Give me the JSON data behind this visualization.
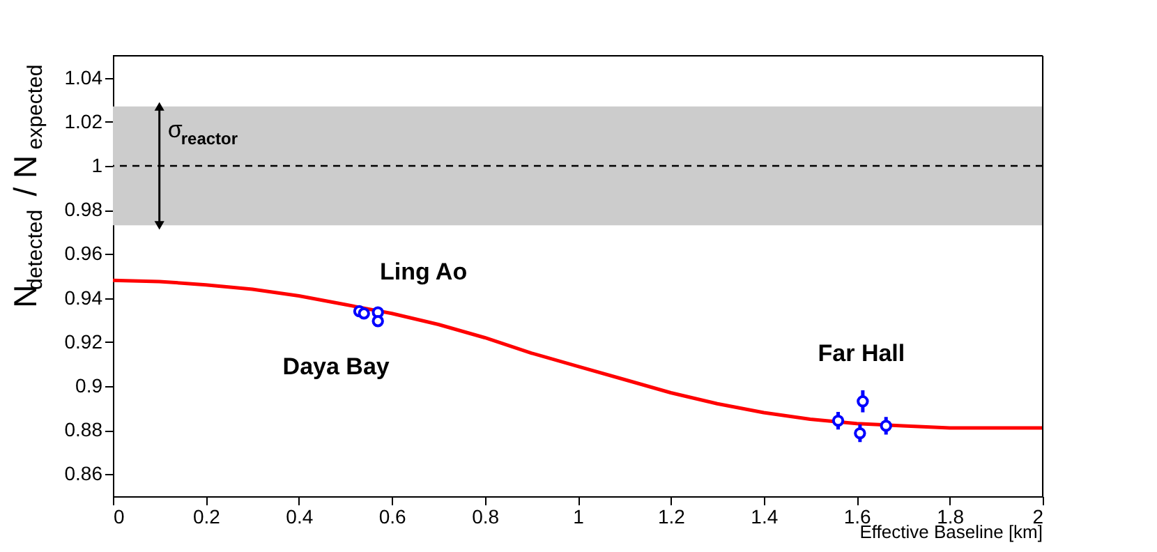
{
  "chart_data": {
    "type": "scatter",
    "xlabel": "Effective Baseline [km]",
    "ylabel": "N$_{detected}$ / N$_{expected}$",
    "xlim": [
      0,
      2
    ],
    "xticks": [
      0,
      0.2,
      0.4,
      0.6,
      0.8,
      1,
      1.2,
      1.4,
      1.6,
      1.8,
      2
    ],
    "ylim": [
      0.85,
      1.05
    ],
    "yticks": [
      0.86,
      0.88,
      0.9,
      0.92,
      0.94,
      0.96,
      0.98,
      1,
      1.02,
      1.04
    ],
    "grid": false,
    "series": [
      {
        "type": "line",
        "color": "#ff0000",
        "line_style": "solid",
        "x": [
          0,
          0.1,
          0.2,
          0.3,
          0.4,
          0.5,
          0.6,
          0.7,
          0.8,
          0.9,
          1.0,
          1.1,
          1.2,
          1.3,
          1.4,
          1.5,
          1.6,
          1.7,
          1.8,
          1.9,
          2.0
        ],
        "values": [
          0.948,
          0.9475,
          0.946,
          0.944,
          0.941,
          0.937,
          0.933,
          0.928,
          0.922,
          0.915,
          0.909,
          0.903,
          0.897,
          0.892,
          0.888,
          0.885,
          0.883,
          0.882,
          0.881,
          0.881,
          0.881
        ]
      },
      {
        "color": "#0000ff",
        "marker": "circle",
        "x": [
          0.53,
          0.54,
          0.57,
          0.57,
          1.56,
          1.607,
          1.613,
          1.663
        ],
        "values": [
          0.934,
          0.933,
          0.9335,
          0.9295,
          0.8843,
          0.8786,
          0.8931,
          0.882
        ],
        "errors": [
          0.0015,
          0.0015,
          0.002,
          0.002,
          0.004,
          0.004,
          0.005,
          0.004
        ]
      }
    ],
    "ref_lines": [
      {
        "axis": "y",
        "value": 1,
        "color": "#000000",
        "line_style": "dashed"
      }
    ],
    "bands": [
      {
        "axis": "y",
        "from": 0.973,
        "to": 1.027,
        "color": "#cccccc",
        "label": "σ$_{reactor}$"
      }
    ],
    "annotations": [
      "Ling Ao",
      "Daya Bay",
      "Far Hall"
    ]
  }
}
